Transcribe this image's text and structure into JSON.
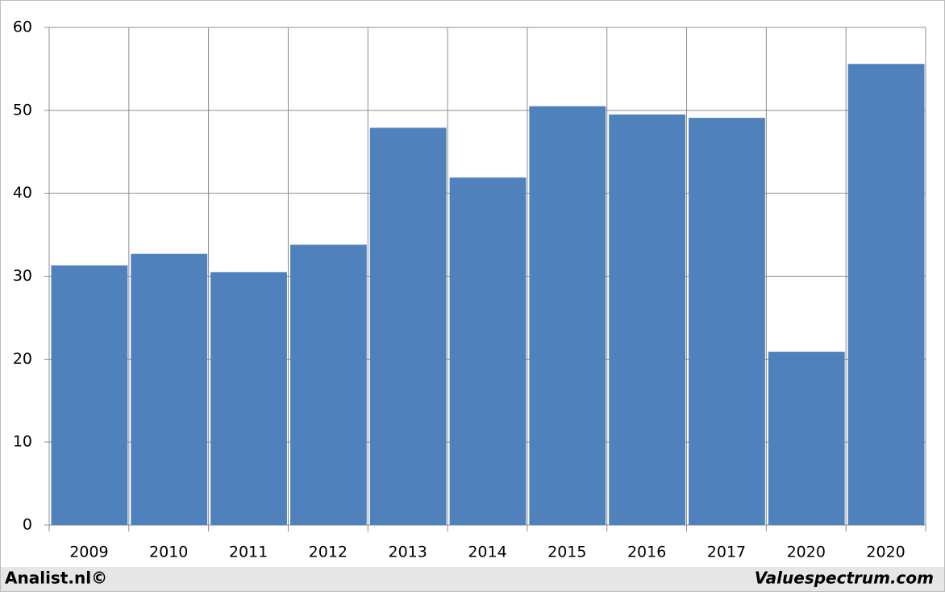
{
  "chart_data": {
    "type": "bar",
    "categories": [
      "2009",
      "2010",
      "2011",
      "2012",
      "2013",
      "2014",
      "2015",
      "2016",
      "2017",
      "2020",
      "2020"
    ],
    "values": [
      31.3,
      32.7,
      30.5,
      33.8,
      47.9,
      41.9,
      50.5,
      49.5,
      49.1,
      20.9,
      55.6
    ],
    "color": "#4f81bd",
    "ylim": [
      0,
      60
    ],
    "yticks": [
      0,
      10,
      20,
      30,
      40,
      50,
      60
    ],
    "grid": true,
    "footer_left": "Analist.nl©",
    "footer_right": "Valuespectrum.com"
  }
}
